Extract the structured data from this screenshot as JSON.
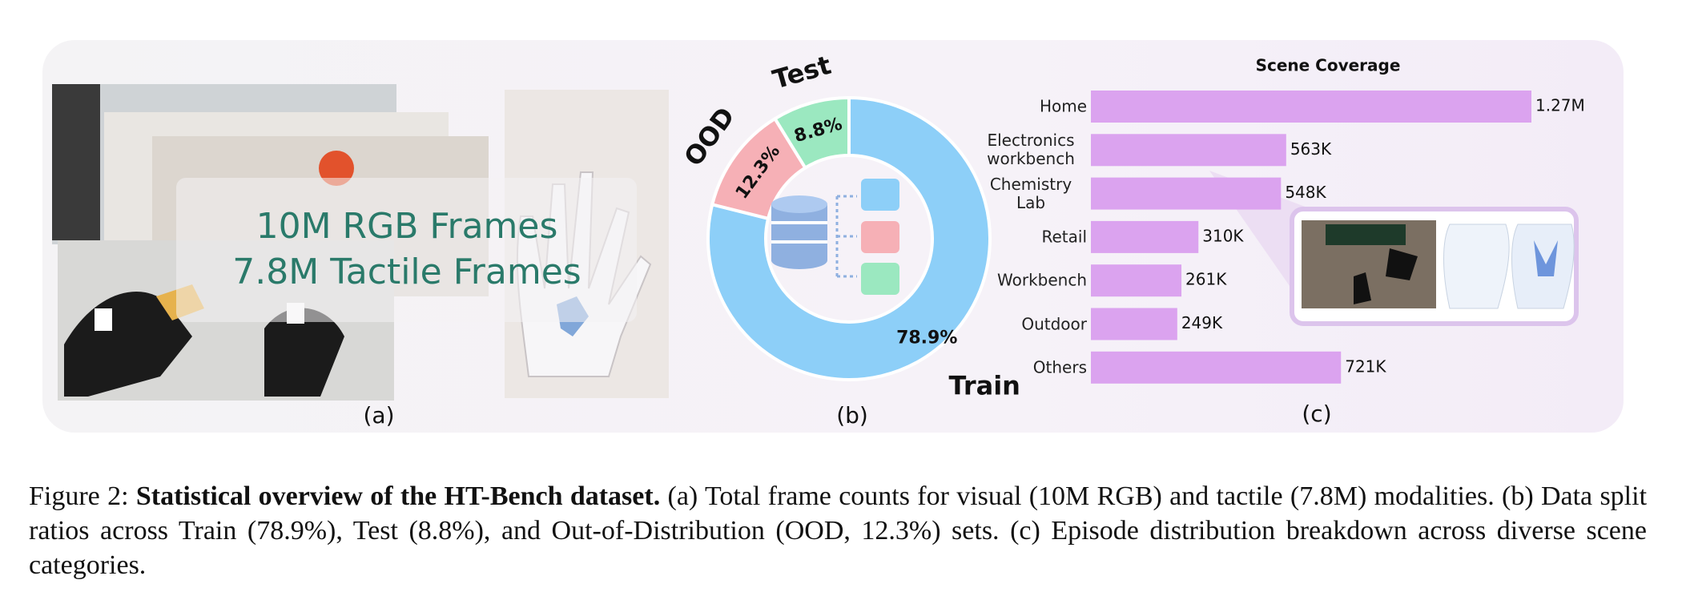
{
  "panel_a": {
    "lines": [
      "10M RGB Frames",
      "7.8M Tactile Frames"
    ],
    "label": "(a)"
  },
  "chart_data": [
    {
      "type": "pie",
      "donut": true,
      "categories": [
        "Train",
        "OOD",
        "Test"
      ],
      "values": [
        78.9,
        12.3,
        8.8
      ],
      "value_labels": [
        "78.9%",
        "12.3%",
        "8.8%"
      ],
      "colors": [
        "#8dcff8",
        "#f6b0b6",
        "#9be8c0"
      ],
      "label": "(b)"
    },
    {
      "type": "bar",
      "orientation": "horizontal",
      "title": "Scene Coverage",
      "categories": [
        "Home",
        "Electronics workbench",
        "Chemistry Lab",
        "Retail",
        "Workbench",
        "Outdoor",
        "Others"
      ],
      "values": [
        1270000,
        563000,
        548000,
        310000,
        261000,
        249000,
        721000
      ],
      "value_labels": [
        "1.27M",
        "563K",
        "548K",
        "310K",
        "261K",
        "249K",
        "721K"
      ],
      "color": "#dba3ef",
      "label": "(c)"
    }
  ],
  "caption": {
    "label": "Figure 2:",
    "title": "Statistical overview of the HT-Bench dataset.",
    "text": "(a) Total frame counts for visual (10M RGB) and tactile (7.8M) modalities. (b) Data split ratios across Train (78.9%), Test (8.8%), and Out-of-Distribution (OOD, 12.3%) sets. (c) Episode distribution breakdown across diverse scene categories."
  }
}
